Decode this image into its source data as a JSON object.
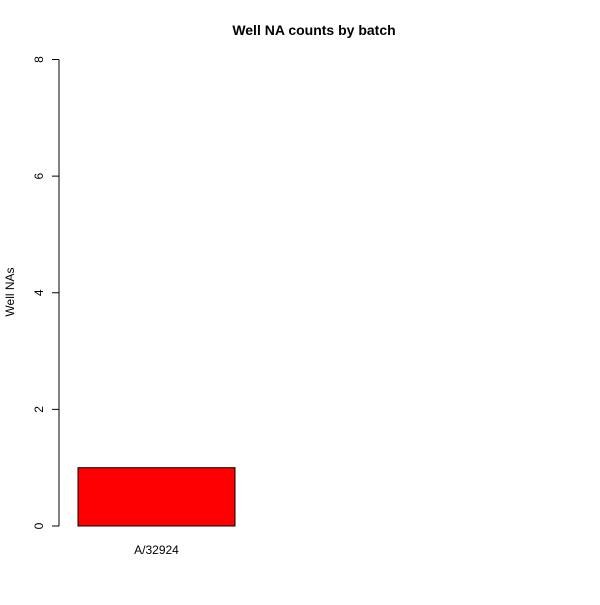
{
  "chart_data": {
    "type": "bar",
    "title": "Well NA counts by batch",
    "xlabel": "",
    "ylabel": "Well NAs",
    "categories": [
      "A/32924"
    ],
    "values": [
      1
    ],
    "ylim": [
      0,
      8
    ],
    "yticks": [
      0,
      2,
      4,
      6,
      8
    ],
    "bar_color": "#ff0000",
    "grid": false,
    "legend": "none"
  }
}
